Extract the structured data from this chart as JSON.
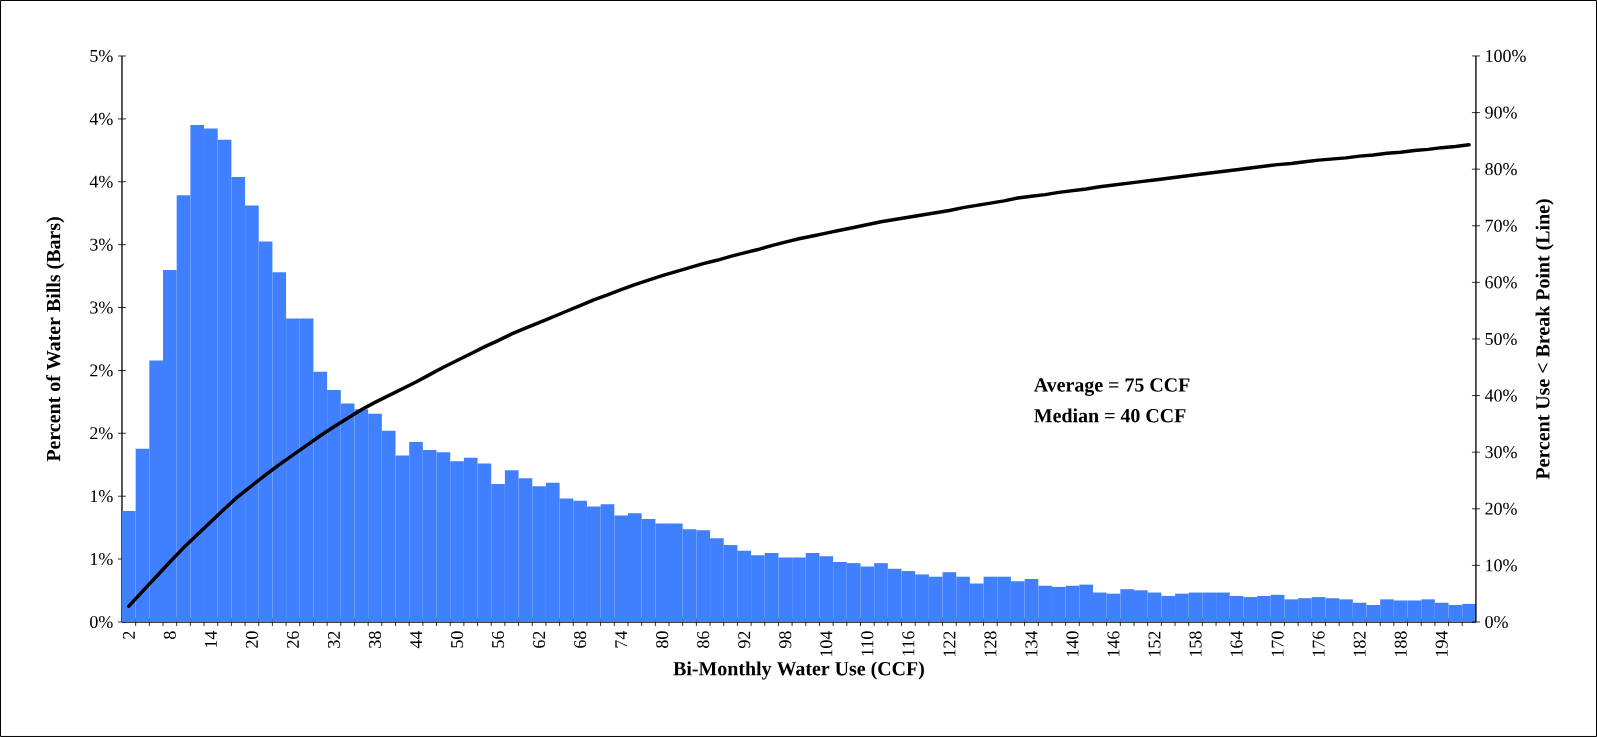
{
  "chart_data": {
    "type": "bar",
    "xlabel": "Bi-Monthly Water Use (CCF)",
    "ylabel": "Percent of Water Bills (Bars)",
    "y2label": "Percent Use < Break Point (Line)",
    "annotations": [
      "Average = 75 CCF",
      "Median = 40 CCF"
    ],
    "categories": [
      "2",
      null,
      null,
      "8",
      null,
      null,
      "14",
      null,
      null,
      "20",
      null,
      null,
      "26",
      null,
      null,
      "32",
      null,
      null,
      "38",
      null,
      null,
      "44",
      null,
      null,
      "50",
      null,
      null,
      "56",
      null,
      null,
      "62",
      null,
      null,
      "68",
      null,
      null,
      "74",
      null,
      null,
      "80",
      null,
      null,
      "86",
      null,
      null,
      "92",
      null,
      null,
      "98",
      null,
      null,
      "104",
      null,
      null,
      "110",
      null,
      null,
      "116",
      null,
      null,
      "122",
      null,
      null,
      "128",
      null,
      null,
      "134",
      null,
      null,
      "140",
      null,
      null,
      "146",
      null,
      null,
      "152",
      null,
      null,
      "158",
      null,
      null,
      "164",
      null,
      null,
      "170",
      null,
      null,
      "176",
      null,
      null,
      "182",
      null,
      null,
      "188",
      null,
      null,
      "194",
      null,
      null
    ],
    "series": [
      {
        "color": "#4080ff",
        "values": [
          0.98,
          1.53,
          2.31,
          3.11,
          3.77,
          4.39,
          4.36,
          4.26,
          3.93,
          3.68,
          3.36,
          3.09,
          2.68,
          2.68,
          2.21,
          2.05,
          1.93,
          1.88,
          1.84,
          1.69,
          1.47,
          1.59,
          1.52,
          1.5,
          1.42,
          1.45,
          1.4,
          1.22,
          1.34,
          1.27,
          1.2,
          1.23,
          1.09,
          1.07,
          1.02,
          1.04,
          0.94,
          0.96,
          0.91,
          0.87,
          0.87,
          0.82,
          0.81,
          0.74,
          0.68,
          0.63,
          0.59,
          0.61,
          0.57,
          0.57,
          0.61,
          0.58,
          0.53,
          0.52,
          0.49,
          0.52,
          0.47,
          0.45,
          0.42,
          0.4,
          0.44,
          0.4,
          0.34,
          0.4,
          0.4,
          0.36,
          0.38,
          0.32,
          0.31,
          0.32,
          0.33,
          0.26,
          0.25,
          0.29,
          0.28,
          0.26,
          0.23,
          0.25,
          0.26,
          0.26,
          0.26,
          0.23,
          0.22,
          0.23,
          0.24,
          0.2,
          0.21,
          0.22,
          0.21,
          0.2,
          0.17,
          0.15,
          0.2,
          0.19,
          0.19,
          0.2,
          0.17,
          0.15,
          0.16
        ]
      },
      {
        "type": "line",
        "axis": "y2",
        "color": "#000000",
        "values": [
          2.8,
          5.4,
          8.0,
          10.6,
          13.1,
          15.4,
          17.7,
          20.0,
          22.2,
          24.1,
          26.0,
          27.8,
          29.5,
          31.2,
          32.9,
          34.5,
          36.0,
          37.5,
          38.8,
          40.0,
          41.2,
          42.4,
          43.7,
          45.0,
          46.2,
          47.4,
          48.6,
          49.7,
          50.9,
          51.9,
          52.9,
          53.9,
          54.9,
          55.9,
          56.9,
          57.8,
          58.7,
          59.6,
          60.4,
          61.2,
          61.9,
          62.6,
          63.3,
          63.9,
          64.6,
          65.2,
          65.8,
          66.5,
          67.1,
          67.7,
          68.2,
          68.7,
          69.2,
          69.7,
          70.2,
          70.7,
          71.1,
          71.5,
          71.9,
          72.3,
          72.7,
          73.2,
          73.6,
          74.0,
          74.4,
          74.9,
          75.2,
          75.5,
          75.9,
          76.2,
          76.5,
          76.9,
          77.2,
          77.5,
          77.8,
          78.1,
          78.4,
          78.7,
          79.0,
          79.3,
          79.6,
          79.9,
          80.2,
          80.5,
          80.8,
          81.0,
          81.3,
          81.6,
          81.8,
          82.0,
          82.3,
          82.5,
          82.8,
          83.0,
          83.3,
          83.5,
          83.8,
          84.0,
          84.3
        ]
      }
    ],
    "ylim": [
      0,
      5
    ],
    "yticks": [
      {
        "value": 0,
        "label": "0%"
      },
      {
        "value": 0.556,
        "label": "1%"
      },
      {
        "value": 1.111,
        "label": "1%"
      },
      {
        "value": 1.667,
        "label": "2%"
      },
      {
        "value": 2.222,
        "label": "2%"
      },
      {
        "value": 2.778,
        "label": "3%"
      },
      {
        "value": 3.333,
        "label": "3%"
      },
      {
        "value": 3.889,
        "label": "4%"
      },
      {
        "value": 4.444,
        "label": "4%"
      },
      {
        "value": 5,
        "label": "5%"
      }
    ],
    "y2lim": [
      0,
      100
    ],
    "y2ticks": [
      {
        "value": 0,
        "label": "0%"
      },
      {
        "value": 10,
        "label": "10%"
      },
      {
        "value": 20,
        "label": "20%"
      },
      {
        "value": 30,
        "label": "30%"
      },
      {
        "value": 40,
        "label": "40%"
      },
      {
        "value": 50,
        "label": "50%"
      },
      {
        "value": 60,
        "label": "60%"
      },
      {
        "value": 70,
        "label": "70%"
      },
      {
        "value": 80,
        "label": "80%"
      },
      {
        "value": 90,
        "label": "90%"
      },
      {
        "value": 100,
        "label": "100%"
      }
    ]
  }
}
